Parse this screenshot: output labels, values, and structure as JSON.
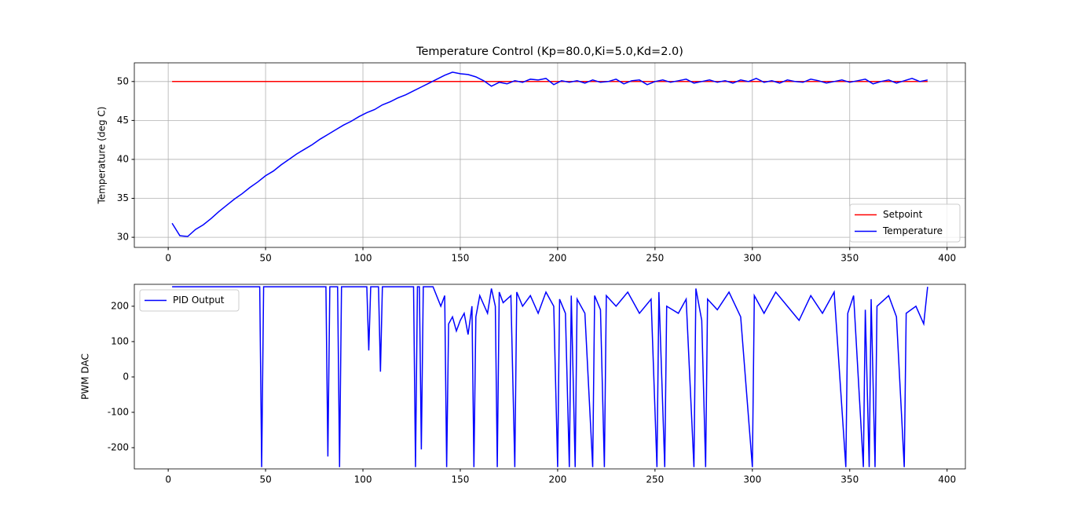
{
  "chart_data": [
    {
      "type": "line",
      "title": "Temperature Control (Kp=80.0,Ki=5.0,Kd=2.0)",
      "y_label": "Temperature (deg C)",
      "xlim": [
        -17.4,
        409.4
      ],
      "xticks": [
        0,
        50,
        100,
        150,
        200,
        250,
        300,
        350,
        400
      ],
      "ylim": [
        28.7,
        52.4
      ],
      "yticks": [
        30,
        35,
        40,
        45,
        50
      ],
      "grid": true,
      "legend": "lower right",
      "series": [
        {
          "name": "Setpoint",
          "color": "#ff0000",
          "x": [
            2,
            390
          ],
          "values": [
            50,
            50
          ]
        },
        {
          "name": "Temperature",
          "color": "#0000ff",
          "x": [
            2,
            6,
            10,
            14,
            18,
            22,
            26,
            30,
            34,
            38,
            42,
            46,
            50,
            54,
            58,
            62,
            66,
            70,
            74,
            78,
            82,
            86,
            90,
            94,
            98,
            102,
            106,
            110,
            114,
            118,
            122,
            126,
            130,
            134,
            138,
            142,
            146,
            150,
            154,
            158,
            162,
            166,
            170,
            174,
            178,
            182,
            186,
            190,
            194,
            198,
            202,
            206,
            210,
            214,
            218,
            222,
            226,
            230,
            234,
            238,
            242,
            246,
            250,
            254,
            258,
            262,
            266,
            270,
            274,
            278,
            282,
            286,
            290,
            294,
            298,
            302,
            306,
            310,
            314,
            318,
            322,
            326,
            330,
            334,
            338,
            342,
            346,
            350,
            354,
            358,
            362,
            366,
            370,
            374,
            378,
            382,
            386,
            390
          ],
          "values": [
            31.8,
            30.2,
            30.1,
            31.0,
            31.6,
            32.4,
            33.3,
            34.1,
            34.9,
            35.6,
            36.4,
            37.1,
            37.9,
            38.5,
            39.3,
            40.0,
            40.7,
            41.3,
            41.9,
            42.6,
            43.2,
            43.8,
            44.4,
            44.9,
            45.5,
            46.0,
            46.4,
            47.0,
            47.4,
            47.9,
            48.3,
            48.8,
            49.3,
            49.8,
            50.3,
            50.8,
            51.2,
            51.0,
            50.9,
            50.6,
            50.1,
            49.4,
            49.9,
            49.7,
            50.1,
            49.9,
            50.3,
            50.2,
            50.4,
            49.6,
            50.1,
            49.9,
            50.1,
            49.8,
            50.2,
            49.9,
            50.0,
            50.3,
            49.7,
            50.1,
            50.2,
            49.6,
            50.0,
            50.2,
            49.9,
            50.1,
            50.3,
            49.8,
            50.0,
            50.2,
            49.9,
            50.1,
            49.8,
            50.2,
            50.0,
            50.4,
            49.9,
            50.1,
            49.8,
            50.2,
            50.0,
            49.9,
            50.3,
            50.1,
            49.8,
            50.0,
            50.2,
            49.9,
            50.1,
            50.3,
            49.7,
            50.0,
            50.2,
            49.8,
            50.1,
            50.4,
            50.0,
            50.2
          ]
        }
      ]
    },
    {
      "type": "line",
      "y_label": "PWM DAC",
      "xlim": [
        -17.4,
        409.4
      ],
      "xticks": [
        0,
        50,
        100,
        150,
        200,
        250,
        300,
        350,
        400
      ],
      "ylim": [
        -260,
        262
      ],
      "yticks": [
        -200,
        -100,
        0,
        100,
        200
      ],
      "grid": false,
      "legend": "upper left",
      "series": [
        {
          "name": "PID Output",
          "color": "#0000ff",
          "x": [
            2,
            47,
            48,
            49,
            81,
            82,
            83,
            87,
            88,
            89,
            102,
            103,
            104,
            108,
            109,
            110,
            126,
            127,
            128,
            129,
            130,
            131,
            136,
            140,
            142,
            143,
            144,
            146,
            148,
            150,
            152,
            154,
            156,
            157,
            158,
            160,
            164,
            166,
            168,
            169,
            170,
            172,
            176,
            178,
            179,
            182,
            186,
            190,
            194,
            198,
            200,
            201,
            204,
            206,
            207,
            209,
            210,
            214,
            218,
            219,
            222,
            224,
            225,
            230,
            236,
            242,
            248,
            251,
            252,
            255,
            256,
            262,
            266,
            270,
            271,
            274,
            276,
            277,
            282,
            288,
            294,
            300,
            301,
            306,
            312,
            318,
            324,
            330,
            336,
            342,
            348,
            349,
            352,
            357,
            358,
            360,
            361,
            363,
            364,
            370,
            374,
            378,
            379,
            384,
            388,
            390
          ],
          "values": [
            255,
            255,
            -255,
            255,
            255,
            -225,
            255,
            255,
            -255,
            255,
            255,
            75,
            255,
            255,
            15,
            255,
            255,
            -255,
            255,
            255,
            -205,
            255,
            255,
            200,
            230,
            -255,
            150,
            170,
            130,
            160,
            180,
            120,
            200,
            -255,
            170,
            230,
            180,
            250,
            200,
            -255,
            240,
            210,
            230,
            -255,
            240,
            200,
            230,
            180,
            240,
            200,
            -255,
            220,
            180,
            -255,
            230,
            -255,
            220,
            180,
            -255,
            230,
            190,
            -255,
            230,
            200,
            240,
            180,
            220,
            -255,
            240,
            -255,
            200,
            180,
            220,
            -255,
            250,
            160,
            -255,
            220,
            190,
            240,
            170,
            -255,
            230,
            180,
            240,
            200,
            160,
            230,
            180,
            240,
            -255,
            180,
            230,
            -255,
            190,
            -255,
            220,
            -255,
            200,
            230,
            170,
            -255,
            180,
            200,
            150,
            255
          ]
        }
      ]
    }
  ]
}
